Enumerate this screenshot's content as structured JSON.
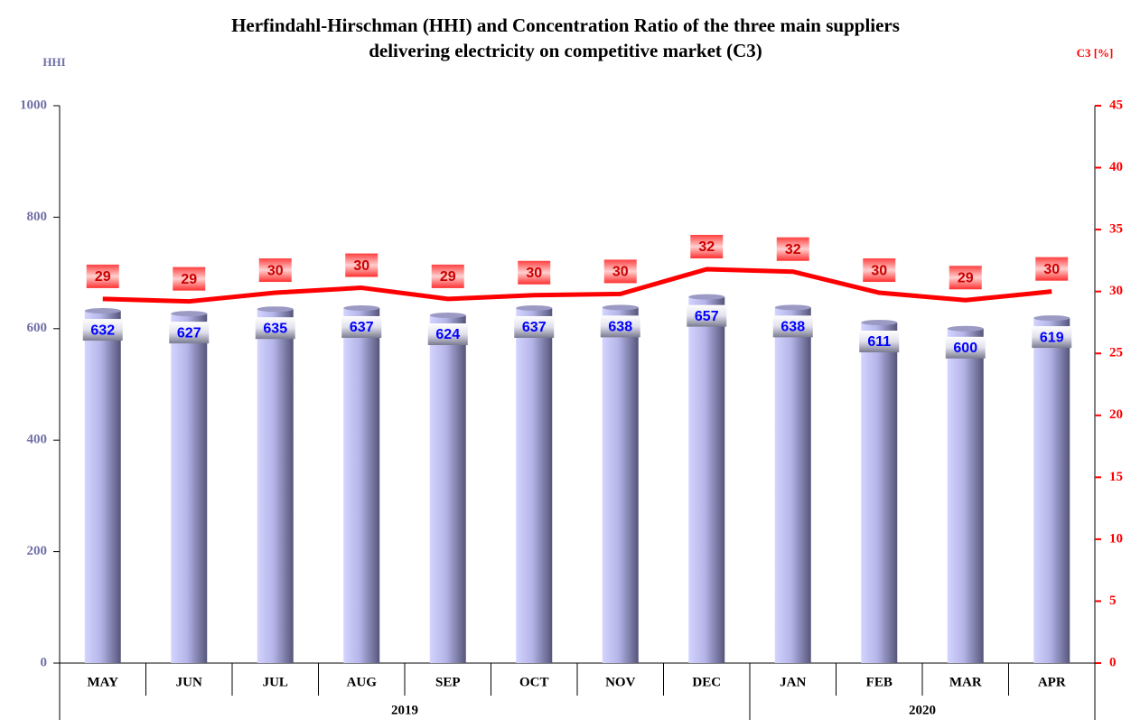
{
  "chart_data": {
    "type": "bar_line",
    "title": [
      "Herfindahl-Hirschman (HHI) and Concentration Ratio of the three main suppliers",
      "delivering electricity on competitive market (C3)"
    ],
    "y_label": "HHI",
    "y2_label": "C3 [%]",
    "categories": [
      "MAY",
      "JUN",
      "JUL",
      "AUG",
      "SEP",
      "OCT",
      "NOV",
      "DEC",
      "JAN",
      "FEB",
      "MAR",
      "APR"
    ],
    "x_groups": [
      {
        "label": "2019",
        "categories": [
          "MAY",
          "JUN",
          "JUL",
          "AUG",
          "SEP",
          "OCT",
          "NOV",
          "DEC"
        ]
      },
      {
        "label": "2020",
        "categories": [
          "JAN",
          "FEB",
          "MAR",
          "APR"
        ]
      }
    ],
    "series": [
      {
        "name": "HHI",
        "type": "bar",
        "color": "#8a8ad0",
        "values": [
          632,
          627,
          635,
          637,
          624,
          637,
          638,
          657,
          638,
          611,
          600,
          619
        ]
      },
      {
        "name": "C3",
        "type": "line",
        "axis": "y2",
        "color": "#ff0000",
        "values": [
          29.4,
          29.2,
          29.9,
          30.3,
          29.4,
          29.7,
          29.8,
          31.8,
          31.6,
          29.9,
          29.3,
          30.0
        ],
        "value_labels": [
          "29",
          "29",
          "30",
          "30",
          "29",
          "30",
          "30",
          "32",
          "32",
          "30",
          "29",
          "30"
        ]
      }
    ],
    "ylim": [
      0,
      1000
    ],
    "yticks": [
      0,
      200,
      400,
      600,
      800,
      1000
    ],
    "y2lim": [
      0,
      45
    ],
    "y2ticks": [
      0,
      5,
      10,
      15,
      20,
      25,
      30,
      35,
      40,
      45
    ]
  }
}
